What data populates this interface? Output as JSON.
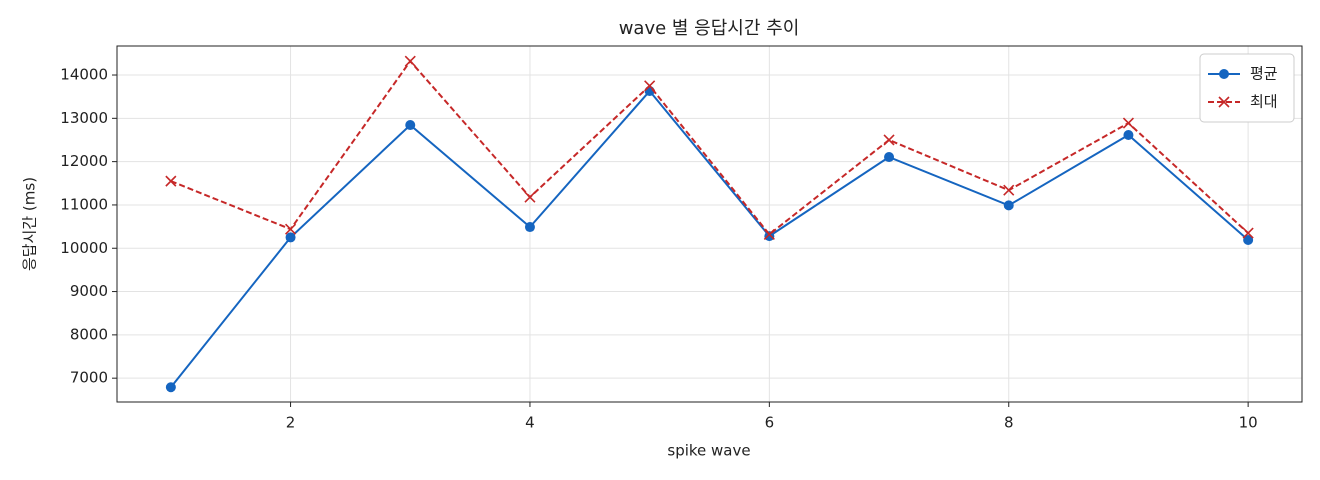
{
  "chart_data": {
    "type": "line",
    "title": "wave 별 응답시간 추이",
    "xlabel": "spike wave",
    "ylabel": "응답시간 (ms)",
    "x": [
      1,
      2,
      3,
      4,
      5,
      6,
      7,
      8,
      9,
      10
    ],
    "series": [
      {
        "name": "평균",
        "color": "#1565c0",
        "marker": "circle",
        "dash": false,
        "values": [
          6790,
          10250,
          12845,
          10490,
          13630,
          10280,
          12106,
          10990,
          12615,
          10190
        ]
      },
      {
        "name": "최대",
        "color": "#c62828",
        "marker": "x",
        "dash": true,
        "values": [
          11550,
          10440,
          14320,
          11180,
          13750,
          10320,
          12500,
          11340,
          12890,
          10350
        ]
      }
    ],
    "xlim": [
      0.55,
      10.45
    ],
    "xticks": [
      2,
      4,
      6,
      8,
      10
    ],
    "ylim": [
      6450,
      14670
    ],
    "yticks": [
      7000,
      8000,
      9000,
      10000,
      11000,
      12000,
      13000,
      14000
    ],
    "grid": true,
    "legend": "upper right"
  }
}
